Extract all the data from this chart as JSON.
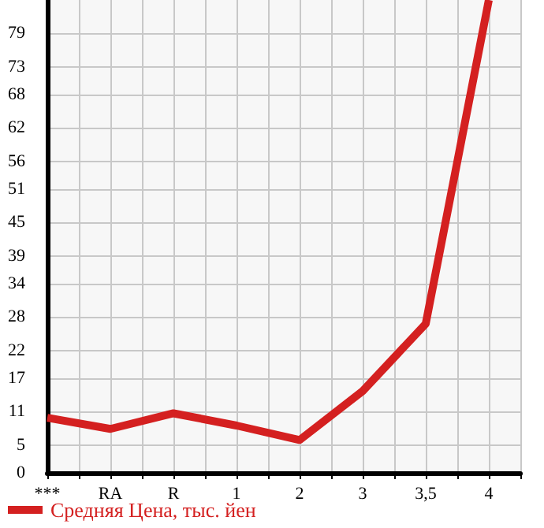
{
  "chart_data": {
    "type": "line",
    "categories": [
      "***",
      "RA",
      "R",
      "1",
      "2",
      "3",
      "3,5",
      "4"
    ],
    "series": [
      {
        "name": "Средняя Цена, тыс. йен",
        "color": "#d42020",
        "values": [
          9.9,
          7.9,
          10.7,
          8.5,
          5.9,
          14.7,
          26.8,
          85
        ]
      }
    ],
    "ylim": [
      0,
      85
    ],
    "yticks": [
      0,
      5,
      11,
      17,
      22,
      28,
      34,
      39,
      45,
      51,
      56,
      62,
      68,
      73,
      79
    ],
    "grid": true,
    "legend": "bottom left",
    "marker": "none",
    "line_style": "solid"
  }
}
